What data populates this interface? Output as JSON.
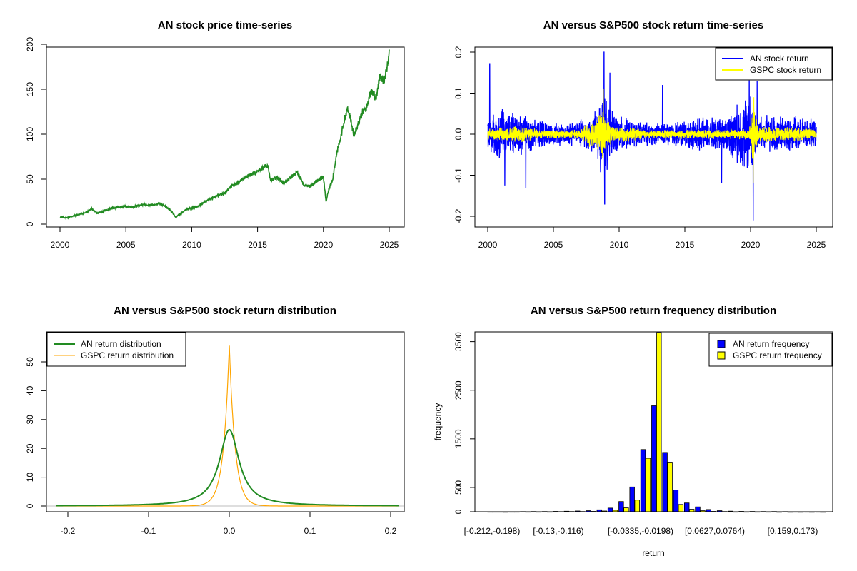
{
  "colors": {
    "green": "#228B22",
    "blue": "#0000FF",
    "yellow": "#FFFF00",
    "orange": "#FFA500",
    "grey": "#BEBEBE"
  },
  "chart_data": [
    {
      "type": "line",
      "title": "AN stock price time-series",
      "xlabel": "",
      "ylabel": "",
      "xlim": [
        2000,
        2025
      ],
      "ylim": [
        0,
        200
      ],
      "x_ticks": [
        "2000",
        "2005",
        "2010",
        "2015",
        "2020",
        "2025"
      ],
      "y_ticks": [
        "0",
        "50",
        "100",
        "150",
        "200"
      ],
      "grid": false,
      "series": [
        {
          "color": "#228B22",
          "x": [
            2000.0,
            2000.5,
            2001.0,
            2001.5,
            2002.0,
            2002.4,
            2002.8,
            2003.2,
            2003.6,
            2004.0,
            2004.5,
            2005.0,
            2005.5,
            2006.0,
            2006.5,
            2007.0,
            2007.5,
            2008.0,
            2008.4,
            2008.8,
            2009.0,
            2009.3,
            2009.6,
            2010.0,
            2010.5,
            2011.0,
            2011.5,
            2012.0,
            2012.5,
            2013.0,
            2013.5,
            2014.0,
            2014.5,
            2015.0,
            2015.5,
            2015.8,
            2016.0,
            2016.5,
            2017.0,
            2017.5,
            2018.0,
            2018.5,
            2019.0,
            2019.5,
            2020.0,
            2020.2,
            2020.4,
            2020.7,
            2021.0,
            2021.3,
            2021.5,
            2021.8,
            2022.0,
            2022.3,
            2022.6,
            2023.0,
            2023.3,
            2023.6,
            2024.0,
            2024.3,
            2024.6,
            2024.8,
            2025.0
          ],
          "y": [
            8,
            7,
            9,
            11,
            13,
            17,
            12,
            14,
            16,
            18,
            19,
            20,
            19,
            21,
            22,
            21,
            23,
            20,
            15,
            8,
            10,
            13,
            17,
            18,
            20,
            25,
            29,
            32,
            34,
            42,
            46,
            52,
            55,
            58,
            64,
            65,
            48,
            52,
            45,
            52,
            58,
            44,
            42,
            48,
            52,
            25,
            38,
            50,
            78,
            95,
            110,
            128,
            120,
            100,
            110,
            125,
            130,
            150,
            140,
            165,
            160,
            172,
            195
          ]
        }
      ]
    },
    {
      "type": "line",
      "title": "AN versus S&P500 stock return time-series",
      "xlabel": "",
      "ylabel": "",
      "xlim": [
        2000,
        2025
      ],
      "ylim": [
        -0.2,
        0.2
      ],
      "x_ticks": [
        "2000",
        "2005",
        "2010",
        "2015",
        "2020",
        "2025"
      ],
      "y_ticks": [
        "-0.2",
        "-0.1",
        "0.0",
        "0.1",
        "0.2"
      ],
      "legend": "top-right",
      "series": [
        {
          "name": "AN stock return",
          "color": "#0000FF",
          "vol_times": [
            2000,
            2001,
            2002,
            2003,
            2004,
            2006,
            2008,
            2008.8,
            2009.5,
            2011,
            2013,
            2016,
            2018,
            2020,
            2020.5,
            2022,
            2024,
            2025
          ],
          "vol_levels": [
            0.035,
            0.045,
            0.04,
            0.035,
            0.025,
            0.02,
            0.035,
            0.08,
            0.04,
            0.025,
            0.02,
            0.03,
            0.03,
            0.08,
            0.035,
            0.035,
            0.03,
            0.025
          ],
          "spikes": [
            [
              2000.15,
              0.172
            ],
            [
              2001.3,
              -0.125
            ],
            [
              2002.9,
              -0.13
            ],
            [
              2008.85,
              0.2
            ],
            [
              2008.9,
              -0.17
            ],
            [
              2009.3,
              0.15
            ],
            [
              2013.3,
              0.12
            ],
            [
              2017.8,
              -0.12
            ],
            [
              2019.9,
              0.13
            ],
            [
              2020.2,
              -0.21
            ],
            [
              2020.5,
              0.13
            ]
          ]
        },
        {
          "name": "GSPC stock return",
          "color": "#FFFF00",
          "vol_times": [
            2000,
            2002.5,
            2004,
            2007,
            2008.8,
            2009.5,
            2011,
            2012,
            2019.9,
            2020.2,
            2020.6,
            2022,
            2025
          ],
          "vol_levels": [
            0.012,
            0.016,
            0.008,
            0.008,
            0.045,
            0.015,
            0.014,
            0.008,
            0.01,
            0.06,
            0.015,
            0.015,
            0.01
          ],
          "spikes": [
            [
              2008.8,
              0.11
            ],
            [
              2020.2,
              -0.12
            ],
            [
              2020.25,
              0.09
            ]
          ]
        }
      ]
    },
    {
      "type": "line",
      "title": "AN versus S&P500 stock return distribution",
      "xlabel": "",
      "ylabel": "",
      "xlim": [
        -0.22,
        0.21
      ],
      "ylim": [
        0,
        58
      ],
      "x_ticks": [
        "-0.2",
        "-0.1",
        "0.0",
        "0.1",
        "0.2"
      ],
      "y_ticks": [
        "0",
        "10",
        "20",
        "30",
        "40",
        "50"
      ],
      "legend": "top-left",
      "series": [
        {
          "name": "AN return distribution",
          "color": "#228B22",
          "peak": 26.5,
          "scale": 0.0148
        },
        {
          "name": "GSPC return distribution",
          "color": "#FFA500",
          "peak": 56,
          "scale": 0.0072
        }
      ]
    },
    {
      "type": "bar",
      "title": "AN versus S&P500 return frequency distribution",
      "xlabel": "return",
      "ylabel": "frequency",
      "ylim": [
        0,
        3700
      ],
      "y_ticks": [
        "0",
        "500",
        "1500",
        "2500",
        "3500"
      ],
      "legend": "top-right",
      "category_labels": [
        "[-0.212,-0.198)",
        "[-0.13,-0.116)",
        "[-0.0335,-0.0198)",
        "[0.0627,0.0764)",
        "[0.159,0.173)"
      ],
      "series": [
        {
          "name": "AN return frequency",
          "color": "#0000FF",
          "values": [
            2,
            1,
            2,
            3,
            4,
            5,
            8,
            10,
            15,
            20,
            40,
            75,
            210,
            510,
            1280,
            2180,
            1220,
            450,
            180,
            100,
            45,
            20,
            12,
            8,
            6,
            5,
            4,
            3,
            2,
            2,
            1
          ]
        },
        {
          "name": "GSPC return frequency",
          "color": "#FFFF00",
          "values": [
            1,
            0,
            1,
            1,
            1,
            2,
            3,
            4,
            5,
            8,
            15,
            30,
            80,
            240,
            1100,
            3700,
            1020,
            150,
            50,
            20,
            8,
            4,
            2,
            1,
            1,
            1,
            0,
            0,
            0,
            0,
            0
          ]
        }
      ]
    }
  ]
}
